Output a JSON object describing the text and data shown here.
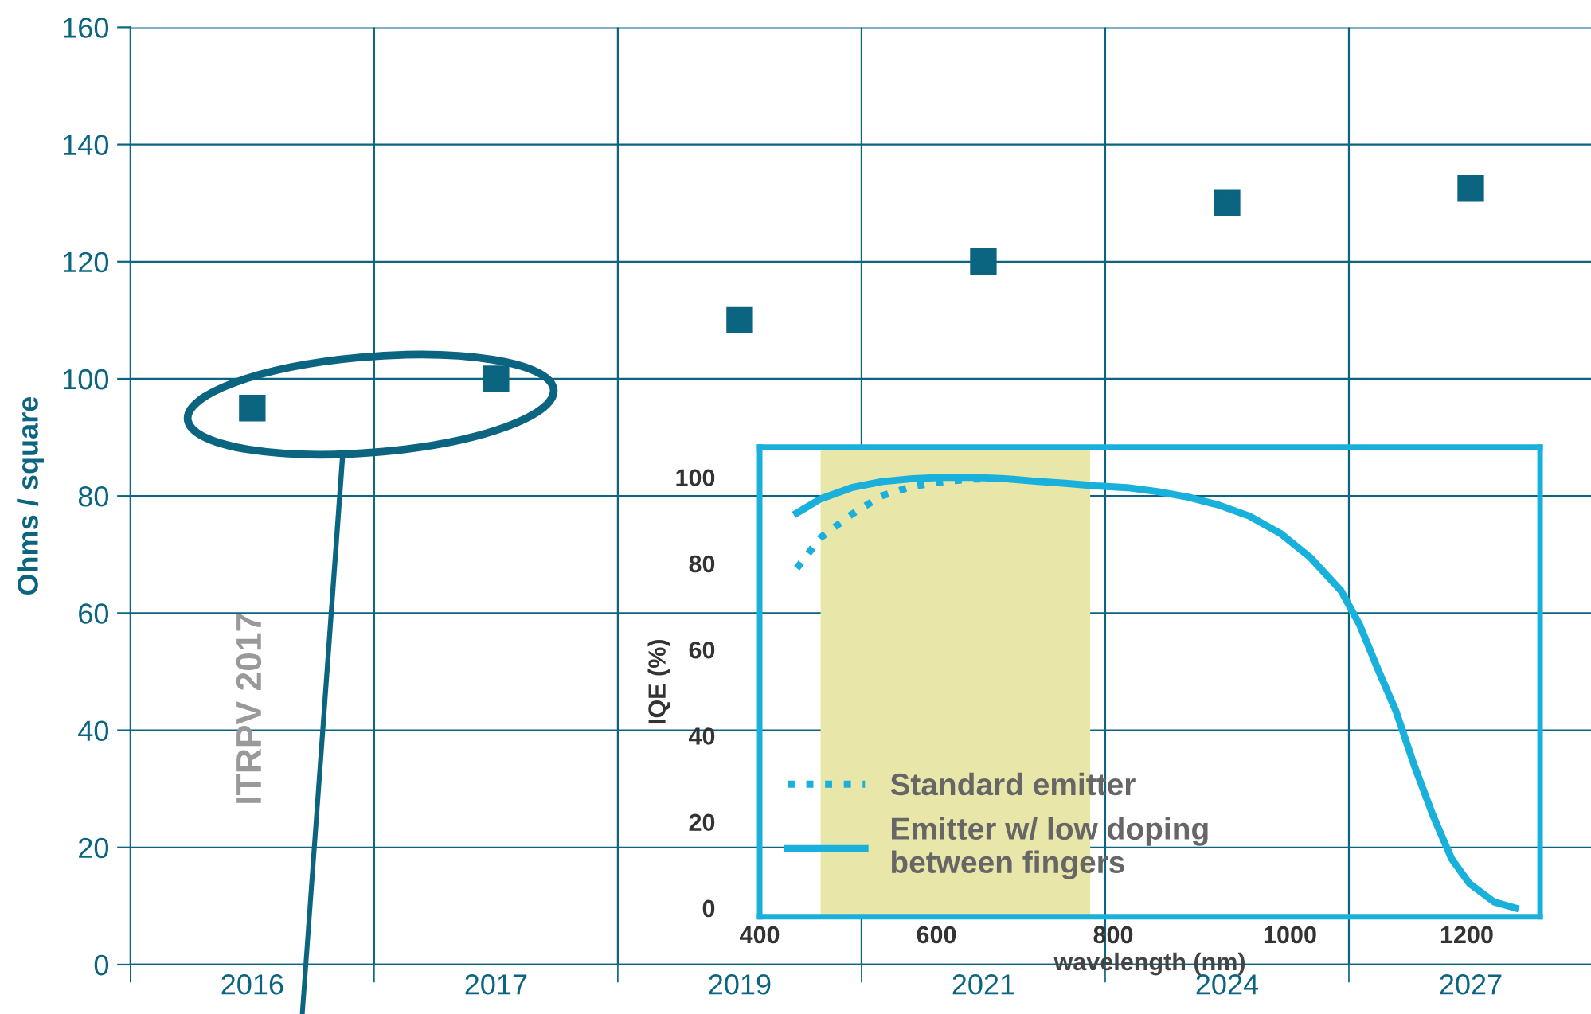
{
  "chart_data": [
    {
      "type": "scatter",
      "ylabel": "Ohms / square",
      "categories": [
        "2016",
        "2017",
        "2019",
        "2021",
        "2024",
        "2027"
      ],
      "series": [
        {
          "color": "#0b6580",
          "values": [
            95,
            100,
            110,
            120,
            130,
            132.5
          ]
        }
      ],
      "ylim": [
        0,
        160
      ],
      "yticks": [
        0,
        20,
        40,
        60,
        80,
        100,
        120,
        140,
        160
      ],
      "grid": true,
      "marker": "square",
      "legend": false,
      "annotations": [
        "ITRPV 2017"
      ]
    },
    {
      "type": "line",
      "xlabel": "wavelength (nm)",
      "ylabel": "IQE (%)",
      "xlim": [
        400,
        1283
      ],
      "ylim": [
        -2,
        107
      ],
      "xticks": [
        400,
        600,
        800,
        1000,
        1200
      ],
      "yticks": [
        0,
        20,
        40,
        60,
        80,
        100
      ],
      "grid": false,
      "legend": "bottom left",
      "bands": [
        {
          "axis": "x",
          "from": 469,
          "to": 774,
          "color": "#e8e6a8"
        }
      ],
      "series": [
        {
          "name": "Standard emitter",
          "color": "#1ab0dc",
          "line_style": "dotted",
          "x": [
            442,
            469,
            504,
            538,
            573,
            608,
            642,
            677
          ],
          "values": [
            78.9,
            86,
            91.4,
            95.7,
            97.9,
            99,
            99.6,
            99.7
          ]
        },
        {
          "name": "Emitter w/ low doping\nbetween fingers",
          "color": "#1ab0dc",
          "line_style": "solid",
          "x": [
            442,
            469,
            504,
            538,
            573,
            608,
            642,
            677,
            712,
            746,
            781,
            816,
            850,
            885,
            919,
            954,
            989,
            1023,
            1058,
            1079,
            1099,
            1120,
            1141,
            1162,
            1183,
            1203,
            1231,
            1255
          ],
          "values": [
            91.7,
            95,
            97.6,
            99,
            99.7,
            100,
            100,
            99.7,
            99.1,
            98.6,
            98,
            97.6,
            96.7,
            95.4,
            93.6,
            91,
            87,
            81.4,
            73.6,
            65.7,
            55.7,
            45.7,
            32.9,
            21.4,
            11.4,
            5.7,
            1.4,
            0
          ]
        }
      ]
    }
  ]
}
